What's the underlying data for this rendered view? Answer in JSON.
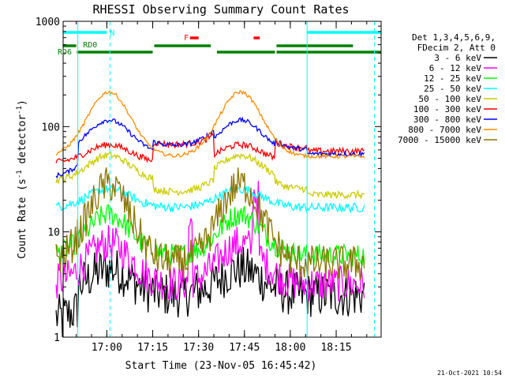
{
  "chart_data": {
    "type": "line",
    "title": "RHESSI Observing Summary Count Rates",
    "xlabel": "Start Time (23-Nov-05 16:45:42)",
    "ylabel_main": "Count Rate (s",
    "ylabel_sup1": "-1",
    "ylabel_mid": " detector",
    "ylabel_sup2": "-1",
    "ylabel_end": ")",
    "x_axis_unit": "minutes since 16:45:42",
    "y_scale": "log",
    "xlim": [
      0,
      104
    ],
    "ylim": [
      1,
      1000
    ],
    "x_ticks": [
      {
        "label": "17:00",
        "x": 14.3
      },
      {
        "label": "17:15",
        "x": 29.3
      },
      {
        "label": "17:30",
        "x": 44.3
      },
      {
        "label": "17:45",
        "x": 59.3
      },
      {
        "label": "18:00",
        "x": 74.3
      },
      {
        "label": "18:15",
        "x": 89.3
      }
    ],
    "y_ticks": [
      {
        "label": "1",
        "y": 1
      },
      {
        "label": "10",
        "y": 10
      },
      {
        "label": "100",
        "y": 100
      },
      {
        "label": "1000",
        "y": 1000
      }
    ],
    "legend_header": [
      "Det 1,3,4,5,6,9,",
      "FDecim 2, Att 0"
    ],
    "legend_position": "right",
    "date_stamp": "21-Oct-2021 10:54",
    "annotations": [
      {
        "label": "N",
        "x": 15.3,
        "color": "#00ffff"
      },
      {
        "label": "RD0",
        "x": 6.5,
        "color": "#008000"
      },
      {
        "label": "RD6",
        "x": -2.3,
        "color": "#008000"
      },
      {
        "label": "F",
        "x": 39.5,
        "color": "#ff0000"
      }
    ],
    "flag_bars": [
      {
        "name": "night",
        "color": "#00ffff",
        "row": 1,
        "intervals": [
          [
            0,
            14.3
          ],
          [
            79.8,
            104
          ]
        ]
      },
      {
        "name": "flare",
        "color": "#ff0000",
        "row": 2,
        "intervals": [
          [
            41.5,
            44.3
          ],
          [
            62.3,
            64.3
          ]
        ]
      },
      {
        "name": "decimation",
        "color": "#008000",
        "row": 3,
        "intervals": [
          [
            0,
            4.3
          ],
          [
            29.8,
            48.3
          ],
          [
            69.8,
            94.8
          ]
        ]
      },
      {
        "name": "decimation-long",
        "color": "#008000",
        "row": 4,
        "intervals": [
          [
            4.5,
            29.3
          ],
          [
            50.3,
            69.3
          ],
          [
            69.8,
            104
          ]
        ]
      }
    ],
    "vlines": [
      {
        "x": 4.8,
        "color": "#00ffff",
        "style": "solid"
      },
      {
        "x": 15.3,
        "color": "#00ffff",
        "style": "dashed"
      },
      {
        "x": 79.8,
        "color": "#00ffff",
        "style": "solid"
      },
      {
        "x": 101.8,
        "color": "#00ffff",
        "style": "dashed"
      }
    ],
    "series": [
      {
        "name": "3 - 6 keV",
        "color": "#000000"
      },
      {
        "name": "6 - 12 keV",
        "color": "#ff00ff"
      },
      {
        "name": "12 - 25 keV",
        "color": "#00ff00"
      },
      {
        "name": "25 - 50 keV",
        "color": "#00ffff"
      },
      {
        "name": "50 - 100 keV",
        "color": "#cccc00"
      },
      {
        "name": "100 - 300 keV",
        "color": "#ff0000"
      },
      {
        "name": "300 - 800 keV",
        "color": "#0000ff"
      },
      {
        "name": "800 - 7000 keV",
        "color": "#ff8c00"
      },
      {
        "name": "7000 - 15000 keV",
        "color": "#8b7500"
      }
    ]
  }
}
